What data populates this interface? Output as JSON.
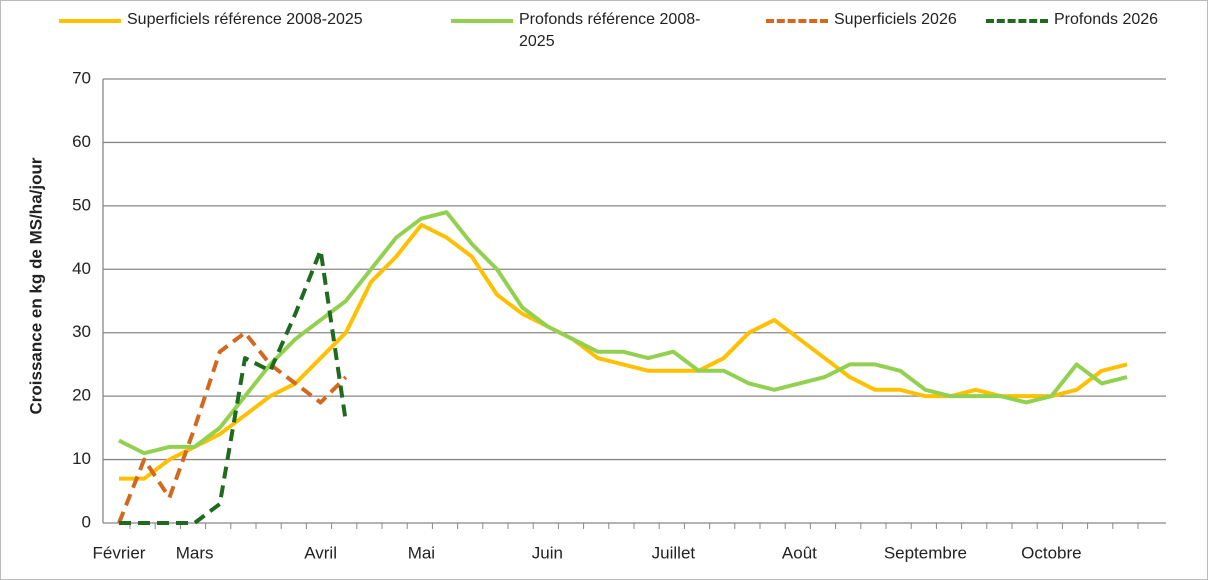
{
  "chart_data": {
    "type": "line",
    "y_label": "Croissance en kg de MS/ha/jour",
    "categories": [
      "Février",
      null,
      null,
      "Mars",
      null,
      null,
      null,
      null,
      "Avril",
      null,
      null,
      null,
      "Mai",
      null,
      null,
      null,
      null,
      "Juin",
      null,
      null,
      null,
      null,
      "Juillet",
      null,
      null,
      null,
      null,
      "Août",
      null,
      null,
      null,
      null,
      "Septembre",
      null,
      null,
      null,
      null,
      "Octobre",
      null,
      null,
      null
    ],
    "ylim": [
      0,
      70
    ],
    "yticks": [
      0,
      10,
      20,
      30,
      40,
      50,
      60,
      70
    ],
    "grid": true,
    "series": [
      {
        "name": "Superficiels référence 2008-2025",
        "color": "#ffc000",
        "dash": false,
        "values": [
          7,
          7,
          10,
          12,
          14,
          17,
          20,
          22,
          26,
          30,
          38,
          42,
          47,
          45,
          42,
          36,
          33,
          31,
          29,
          26,
          25,
          24,
          24,
          24,
          26,
          30,
          32,
          29,
          26,
          23,
          21,
          21,
          20,
          20,
          21,
          20,
          20,
          20,
          21,
          24,
          25
        ]
      },
      {
        "name": "Profonds référence 2008-2025",
        "color": "#92d050",
        "dash": false,
        "values": [
          13,
          11,
          12,
          12,
          15,
          20,
          25,
          29,
          32,
          35,
          40,
          45,
          48,
          49,
          44,
          40,
          34,
          31,
          29,
          27,
          27,
          26,
          27,
          24,
          24,
          22,
          21,
          22,
          23,
          25,
          25,
          24,
          21,
          20,
          20,
          20,
          19,
          20,
          25,
          22,
          23
        ]
      },
      {
        "name": "Superficiels 2026",
        "color": "#d2691e",
        "dash": true,
        "values": [
          0,
          10,
          4,
          15,
          27,
          30,
          25,
          22,
          19,
          23,
          null,
          null,
          null,
          null,
          null,
          null,
          null,
          null,
          null,
          null,
          null,
          null,
          null,
          null,
          null,
          null,
          null,
          null,
          null,
          null,
          null,
          null,
          null,
          null,
          null,
          null,
          null,
          null,
          null,
          null,
          null
        ]
      },
      {
        "name": "Profonds 2026",
        "color": "#1e6b1e",
        "dash": true,
        "values": [
          0,
          0,
          0,
          0,
          3,
          26,
          24,
          33,
          43,
          16,
          null,
          null,
          null,
          null,
          null,
          null,
          null,
          null,
          null,
          null,
          null,
          null,
          null,
          null,
          null,
          null,
          null,
          null,
          null,
          null,
          null,
          null,
          null,
          null,
          null,
          null,
          null,
          null,
          null,
          null,
          null
        ]
      }
    ]
  }
}
